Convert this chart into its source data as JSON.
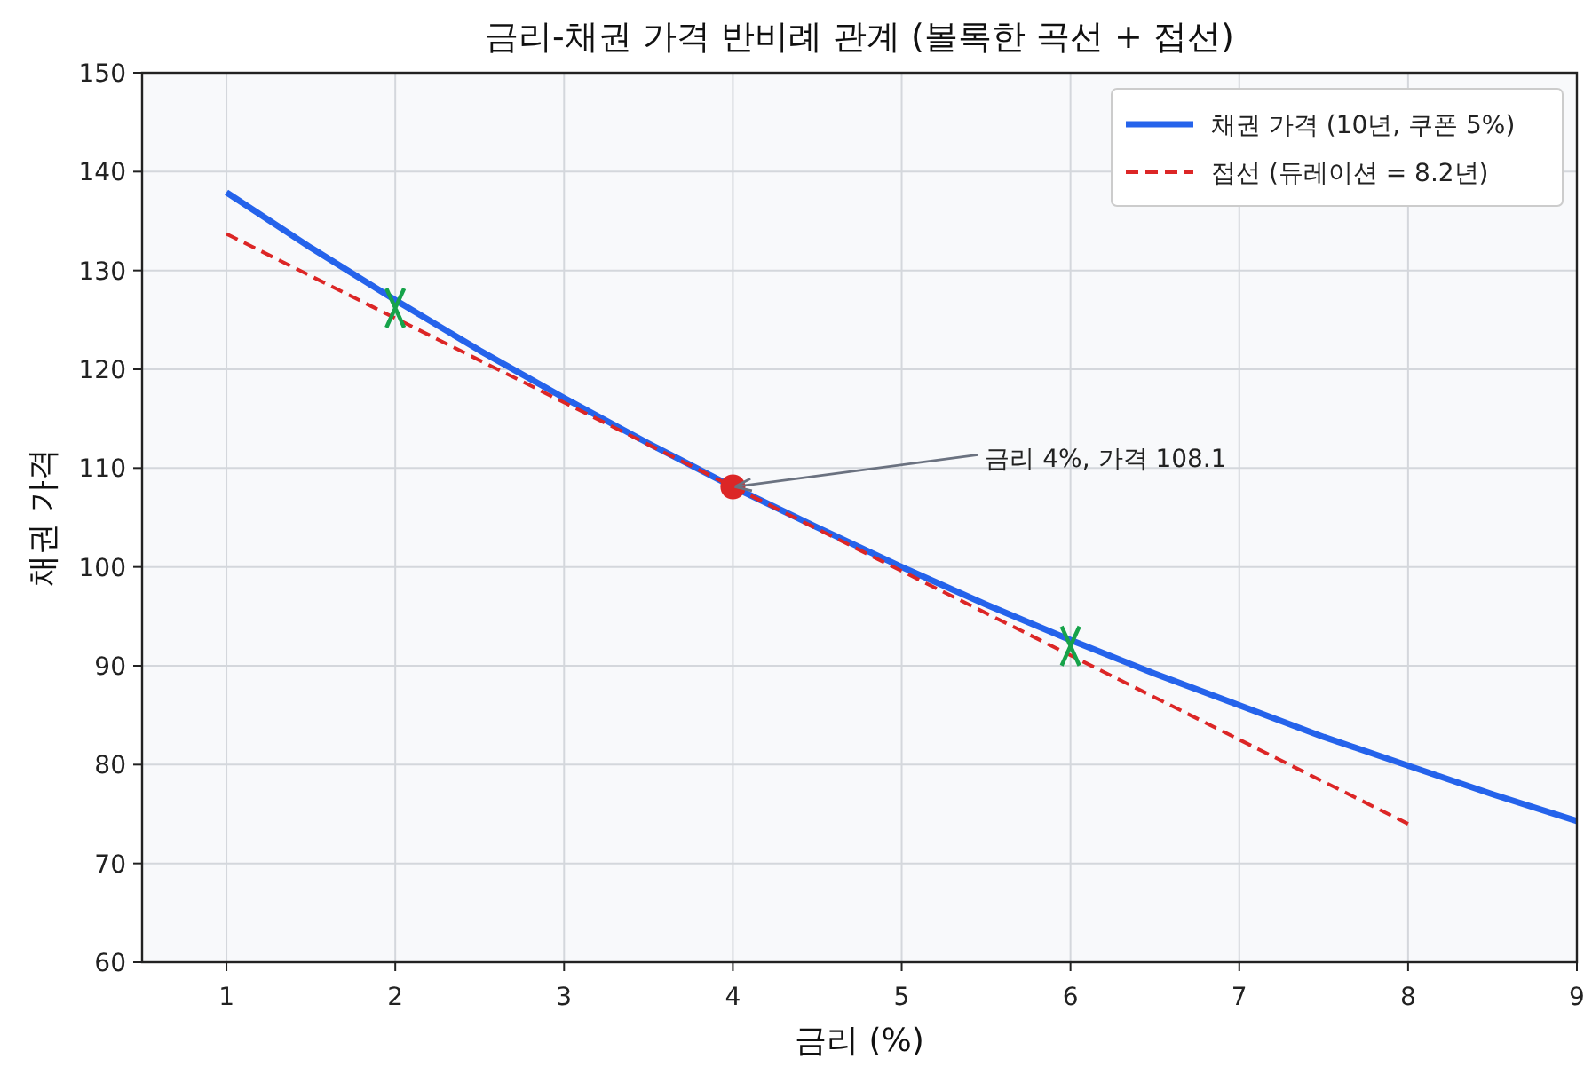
{
  "chart_data": {
    "type": "line",
    "title": "금리-채권 가격 반비례 관계 (볼록한 곡선 + 접선)",
    "xlabel": "금리 (%)",
    "ylabel": "채권 가격",
    "xlim": [
      0.5,
      9
    ],
    "xticks": [
      1,
      2,
      3,
      4,
      5,
      6,
      7,
      8,
      9
    ],
    "ylim": [
      60,
      150
    ],
    "yticks": [
      60,
      70,
      80,
      90,
      100,
      110,
      120,
      130,
      140,
      150
    ],
    "grid": true,
    "legend": "top right",
    "series": [
      {
        "name": "채권 가격 (10년, 쿠폰 5%)",
        "color": "#2563eb",
        "line_style": "solid",
        "x": [
          1,
          1.5,
          2,
          2.5,
          3,
          3.5,
          4,
          4.5,
          5,
          5.5,
          6,
          6.5,
          7,
          7.5,
          8,
          8.5,
          9
        ],
        "values": [
          137.9,
          132.3,
          127.0,
          121.9,
          117.1,
          112.5,
          108.1,
          104.0,
          100.0,
          96.2,
          92.6,
          89.2,
          86.0,
          82.8,
          79.9,
          77.0,
          74.3
        ]
      },
      {
        "name": "접선 (듀레이션 = 8.2년)",
        "color": "#dc2626",
        "line_style": "dashed",
        "x": [
          1,
          8
        ],
        "values": [
          133.7,
          74.0
        ]
      },
      {
        "type": "scatter",
        "color": "#dc2626",
        "marker": "circle",
        "x": [
          4
        ],
        "values": [
          108.1
        ]
      },
      {
        "type": "scatter",
        "color": "#16a34a",
        "marker": "cross",
        "x": [
          2,
          6
        ],
        "values": [
          126.2,
          92.0
        ]
      }
    ],
    "annotations": [
      {
        "text": "금리 4%, 가격 108.1",
        "x": 4,
        "y": 108.1
      }
    ]
  }
}
